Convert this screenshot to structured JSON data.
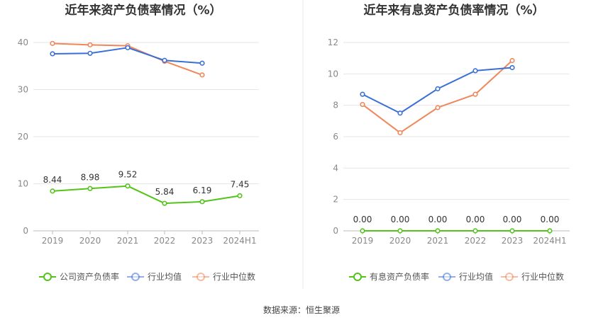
{
  "source_text": "数据来源：恒生聚源",
  "colors": {
    "green": "#52c41a",
    "blue": "#3a6fd8",
    "orange": "#f0875a",
    "grid": "#e6e6e6",
    "axis": "#bbbbbb",
    "divider": "#e8e8e8"
  },
  "chart_data": [
    {
      "type": "line",
      "title": "近年来资产负债率情况（%）",
      "categories": [
        "2019",
        "2020",
        "2021",
        "2022",
        "2023",
        "2024H1"
      ],
      "ylim": [
        0,
        40
      ],
      "yticks": [
        0,
        10,
        20,
        30,
        40
      ],
      "grid": true,
      "legend_position": "bottom",
      "series": [
        {
          "name": "公司资产负债率",
          "color": "#52c41a",
          "labels": true,
          "values": [
            8.44,
            8.98,
            9.52,
            5.84,
            6.19,
            7.45
          ]
        },
        {
          "name": "行业均值",
          "color": "#3a6fd8",
          "labels": false,
          "values": [
            37.6,
            37.7,
            38.9,
            36.2,
            35.6,
            null
          ]
        },
        {
          "name": "行业中位数",
          "color": "#f0875a",
          "labels": false,
          "values": [
            39.8,
            39.5,
            39.3,
            36.0,
            33.1,
            null
          ]
        }
      ],
      "value_labels": [
        "8.44",
        "8.98",
        "9.52",
        "5.84",
        "6.19",
        "7.45"
      ]
    },
    {
      "type": "line",
      "title": "近年来有息资产负债率情况（%）",
      "categories": [
        "2019",
        "2020",
        "2021",
        "2022",
        "2023",
        "2024H1"
      ],
      "ylim": [
        0,
        12
      ],
      "yticks": [
        0,
        2,
        4,
        6,
        8,
        10,
        12
      ],
      "grid": true,
      "legend_position": "bottom",
      "series": [
        {
          "name": "有息资产负债率",
          "color": "#52c41a",
          "labels": true,
          "values": [
            0,
            0,
            0,
            0,
            0,
            0
          ]
        },
        {
          "name": "行业均值",
          "color": "#3a6fd8",
          "labels": false,
          "values": [
            8.7,
            7.5,
            9.05,
            10.2,
            10.4,
            null
          ]
        },
        {
          "name": "行业中位数",
          "color": "#f0875a",
          "labels": false,
          "values": [
            8.05,
            6.25,
            7.85,
            8.7,
            10.85,
            null
          ]
        }
      ],
      "value_labels": [
        "0.00",
        "0.00",
        "0.00",
        "0.00",
        "0.00",
        "0.00"
      ]
    }
  ]
}
